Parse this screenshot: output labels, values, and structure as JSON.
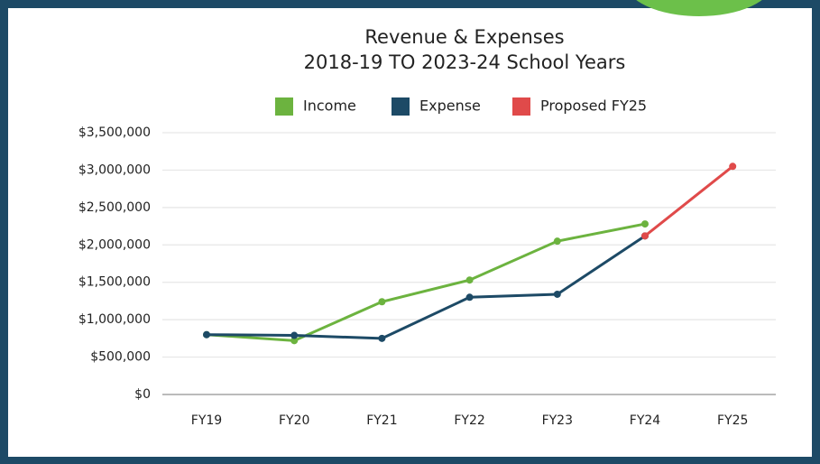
{
  "chart_data": {
    "type": "line",
    "title": [
      "Revenue & Expenses",
      "2018-19 TO 2023-24 School Years"
    ],
    "categories": [
      "FY19",
      "FY20",
      "FY21",
      "FY22",
      "FY23",
      "FY24",
      "FY25"
    ],
    "series": [
      {
        "name": "Income",
        "color": "#6cb33f",
        "values": [
          800000,
          720000,
          1240000,
          1530000,
          2050000,
          2280000,
          null
        ]
      },
      {
        "name": "Expense",
        "color": "#1d4a66",
        "values": [
          800000,
          790000,
          750000,
          1300000,
          1340000,
          2120000,
          null
        ]
      },
      {
        "name": "Proposed FY25",
        "color": "#e04a4a",
        "values": [
          null,
          null,
          null,
          null,
          null,
          2120000,
          3050000
        ]
      }
    ],
    "ylim": [
      0,
      3500000
    ],
    "yticks": [
      {
        "value": 0,
        "label": "$0"
      },
      {
        "value": 500000,
        "label": "$500,000"
      },
      {
        "value": 1000000,
        "label": "$1,000,000"
      },
      {
        "value": 1500000,
        "label": "$1,500,000"
      },
      {
        "value": 2000000,
        "label": "$2,000,000"
      },
      {
        "value": 2500000,
        "label": "$2,500,000"
      },
      {
        "value": 3000000,
        "label": "$3,000,000"
      },
      {
        "value": 3500000,
        "label": "$3,500,000"
      }
    ],
    "grid": true
  }
}
